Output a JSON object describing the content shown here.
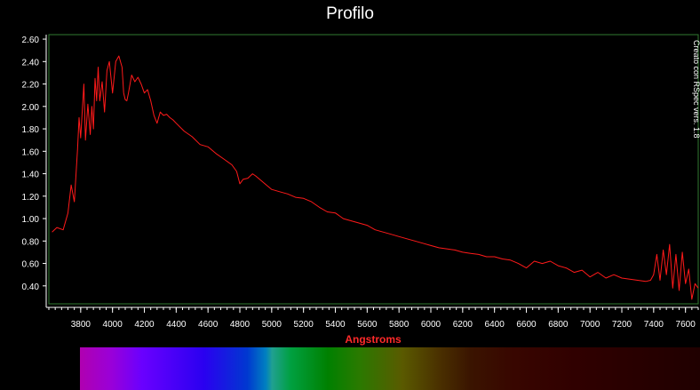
{
  "chart_data": {
    "type": "line",
    "title": "Profilo",
    "xlabel": "Angstroms",
    "ylabel": "",
    "xlim": [
      3600,
      7680
    ],
    "ylim": [
      0.24,
      2.64
    ],
    "xticks": [
      3800,
      4000,
      4200,
      4400,
      4600,
      4800,
      5000,
      5200,
      5400,
      5600,
      5800,
      6000,
      6200,
      6400,
      6600,
      6800,
      7000,
      7200,
      7400,
      7600
    ],
    "yticks": [
      0.4,
      0.6,
      0.8,
      1.0,
      1.2,
      1.4,
      1.6,
      1.8,
      2.0,
      2.2,
      2.4,
      2.6
    ],
    "ytick_labels": [
      "0.40",
      "0.60",
      "0.80",
      "1.00",
      "1.20",
      "1.40",
      "1.60",
      "1.80",
      "2.00",
      "2.20",
      "2.40",
      "2.60"
    ],
    "grid": false,
    "series": [
      {
        "color": "#ff1a1a",
        "x": [
          3620,
          3650,
          3690,
          3720,
          3740,
          3760,
          3780,
          3790,
          3800,
          3820,
          3830,
          3845,
          3860,
          3870,
          3880,
          3890,
          3900,
          3910,
          3920,
          3935,
          3950,
          3965,
          3980,
          4000,
          4020,
          4040,
          4060,
          4070,
          4080,
          4090,
          4100,
          4120,
          4140,
          4160,
          4180,
          4200,
          4220,
          4240,
          4260,
          4280,
          4300,
          4320,
          4340,
          4360,
          4380,
          4400,
          4450,
          4500,
          4550,
          4600,
          4650,
          4700,
          4750,
          4780,
          4800,
          4820,
          4850,
          4880,
          4900,
          4950,
          5000,
          5050,
          5100,
          5150,
          5200,
          5250,
          5300,
          5350,
          5400,
          5450,
          5500,
          5550,
          5600,
          5650,
          5700,
          5750,
          5800,
          5850,
          5900,
          5950,
          6000,
          6050,
          6100,
          6150,
          6200,
          6250,
          6300,
          6350,
          6400,
          6450,
          6500,
          6550,
          6600,
          6650,
          6700,
          6750,
          6800,
          6850,
          6900,
          6950,
          7000,
          7050,
          7100,
          7150,
          7200,
          7250,
          7300,
          7350,
          7380,
          7400,
          7420,
          7440,
          7460,
          7480,
          7500,
          7520,
          7540,
          7560,
          7580,
          7600,
          7620,
          7640,
          7660,
          7680
        ],
        "y": [
          0.88,
          0.92,
          0.9,
          1.05,
          1.3,
          1.15,
          1.62,
          1.9,
          1.72,
          2.2,
          1.7,
          2.02,
          1.75,
          2.0,
          1.8,
          2.25,
          2.05,
          2.35,
          2.05,
          2.22,
          1.95,
          2.32,
          2.4,
          2.12,
          2.4,
          2.45,
          2.35,
          2.12,
          2.06,
          2.05,
          2.12,
          2.28,
          2.22,
          2.26,
          2.2,
          2.12,
          2.15,
          2.05,
          1.92,
          1.85,
          1.95,
          1.92,
          1.93,
          1.9,
          1.88,
          1.85,
          1.78,
          1.73,
          1.66,
          1.64,
          1.58,
          1.53,
          1.48,
          1.42,
          1.31,
          1.35,
          1.36,
          1.4,
          1.38,
          1.32,
          1.26,
          1.24,
          1.22,
          1.19,
          1.18,
          1.15,
          1.1,
          1.06,
          1.05,
          1.0,
          0.98,
          0.96,
          0.94,
          0.9,
          0.88,
          0.86,
          0.84,
          0.82,
          0.8,
          0.78,
          0.76,
          0.74,
          0.73,
          0.72,
          0.7,
          0.69,
          0.68,
          0.66,
          0.66,
          0.64,
          0.63,
          0.6,
          0.56,
          0.62,
          0.6,
          0.62,
          0.58,
          0.56,
          0.52,
          0.54,
          0.48,
          0.52,
          0.47,
          0.5,
          0.47,
          0.46,
          0.45,
          0.44,
          0.45,
          0.5,
          0.68,
          0.45,
          0.72,
          0.5,
          0.77,
          0.38,
          0.68,
          0.36,
          0.7,
          0.42,
          0.55,
          0.28,
          0.42,
          0.38
        ]
      }
    ]
  },
  "watermark": "Creato con RSpec vers. 1.8",
  "spectrum_bar": {
    "stops": [
      [
        0.0,
        "#b000b0"
      ],
      [
        0.05,
        "#9a00d8"
      ],
      [
        0.1,
        "#6a00ff"
      ],
      [
        0.2,
        "#2a00f0"
      ],
      [
        0.27,
        "#0038d0"
      ],
      [
        0.3,
        "#0080c0"
      ],
      [
        0.31,
        "#20a090"
      ],
      [
        0.34,
        "#00a040"
      ],
      [
        0.4,
        "#008000"
      ],
      [
        0.45,
        "#2a7a00"
      ],
      [
        0.52,
        "#5a5a00"
      ],
      [
        0.58,
        "#4a3000"
      ],
      [
        0.63,
        "#3a1400"
      ],
      [
        0.7,
        "#380600"
      ],
      [
        0.8,
        "#300000"
      ],
      [
        0.9,
        "#280000"
      ],
      [
        1.0,
        "#200000"
      ]
    ]
  }
}
